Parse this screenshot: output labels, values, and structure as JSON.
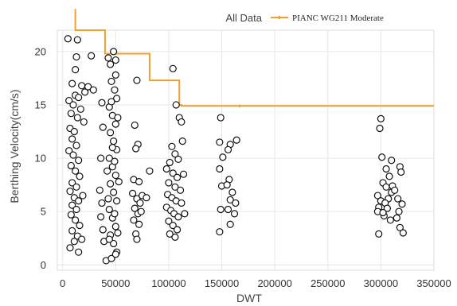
{
  "chart_data": {
    "type": "scatter",
    "xlabel": "DWT",
    "ylabel": "Berthing Velocity(cm/s)",
    "xlim": [
      -5000,
      350000
    ],
    "ylim": [
      -0.5,
      22
    ],
    "xticks": [
      0,
      50000,
      100000,
      150000,
      200000,
      250000,
      300000,
      350000
    ],
    "xtick_labels": [
      "0",
      "50000",
      "100000",
      "150000",
      "200000",
      "250000",
      "300000",
      "350000"
    ],
    "yticks": [
      0,
      5,
      10,
      15,
      20
    ],
    "ytick_labels": [
      "0",
      "5",
      "10",
      "15",
      "20"
    ],
    "grid": true,
    "legend": {
      "title": "All Data",
      "placement": "top-right",
      "entries": [
        "PIANC WG211 Moderate"
      ]
    },
    "colors": {
      "line": "#f0a030",
      "marker_edge": "#111111",
      "marker_face": "#ffffff",
      "grid": "#e6e6e6"
    },
    "series": [
      {
        "name": "PIANC WG211 Moderate",
        "type": "step-line",
        "points": [
          [
            12000,
            24
          ],
          [
            12000,
            22
          ],
          [
            40000,
            22
          ],
          [
            40000,
            19.8
          ],
          [
            82000,
            19.8
          ],
          [
            82000,
            17.3
          ],
          [
            110000,
            17.3
          ],
          [
            110000,
            15.0
          ],
          [
            112000,
            15.0
          ],
          [
            112000,
            14.9
          ],
          [
            350000,
            14.9
          ]
        ]
      },
      {
        "name": "All Data",
        "type": "scatter",
        "points": [
          [
            5000,
            21.2
          ],
          [
            14000,
            21.1
          ],
          [
            13000,
            19.5
          ],
          [
            27000,
            19.6
          ],
          [
            12000,
            18.3
          ],
          [
            9000,
            17.0
          ],
          [
            18000,
            16.8
          ],
          [
            21000,
            16.2
          ],
          [
            24000,
            16.7
          ],
          [
            29000,
            16.4
          ],
          [
            12000,
            15.9
          ],
          [
            15000,
            15.7
          ],
          [
            6000,
            15.4
          ],
          [
            10000,
            15.0
          ],
          [
            17000,
            14.6
          ],
          [
            8000,
            14.2
          ],
          [
            14000,
            13.8
          ],
          [
            20000,
            13.4
          ],
          [
            7000,
            12.8
          ],
          [
            11000,
            12.5
          ],
          [
            9000,
            11.8
          ],
          [
            13000,
            11.2
          ],
          [
            6000,
            10.7
          ],
          [
            10000,
            10.3
          ],
          [
            15000,
            9.8
          ],
          [
            8000,
            9.3
          ],
          [
            12000,
            8.8
          ],
          [
            16000,
            8.3
          ],
          [
            9000,
            7.7
          ],
          [
            13000,
            7.3
          ],
          [
            7000,
            6.9
          ],
          [
            11000,
            6.3
          ],
          [
            15000,
            6.0
          ],
          [
            9000,
            5.6
          ],
          [
            13000,
            5.2
          ],
          [
            8000,
            4.7
          ],
          [
            12000,
            4.2
          ],
          [
            16000,
            3.7
          ],
          [
            9000,
            3.2
          ],
          [
            14000,
            2.7
          ],
          [
            11000,
            2.2
          ],
          [
            7000,
            1.6
          ],
          [
            15000,
            1.2
          ],
          [
            19000,
            6.5
          ],
          [
            18000,
            2.4
          ],
          [
            37000,
            15.2
          ],
          [
            38000,
            12.9
          ],
          [
            36000,
            10.0
          ],
          [
            35000,
            7.0
          ],
          [
            37000,
            5.8
          ],
          [
            36000,
            4.5
          ],
          [
            38000,
            3.3
          ],
          [
            39000,
            2.2
          ],
          [
            41000,
            0.4
          ],
          [
            43000,
            19.4
          ],
          [
            45000,
            18.8
          ],
          [
            48000,
            20.0
          ],
          [
            50000,
            19.2
          ],
          [
            46000,
            17.2
          ],
          [
            49000,
            16.4
          ],
          [
            51000,
            15.6
          ],
          [
            44000,
            14.8
          ],
          [
            47000,
            14.0
          ],
          [
            50000,
            13.2
          ],
          [
            45000,
            12.4
          ],
          [
            48000,
            11.6
          ],
          [
            51000,
            10.8
          ],
          [
            44000,
            10.0
          ],
          [
            47000,
            9.2
          ],
          [
            50000,
            8.4
          ],
          [
            45000,
            7.6
          ],
          [
            48000,
            6.8
          ],
          [
            51000,
            6.0
          ],
          [
            44000,
            5.2
          ],
          [
            47000,
            4.4
          ],
          [
            50000,
            3.6
          ],
          [
            45000,
            2.8
          ],
          [
            48000,
            2.0
          ],
          [
            51000,
            1.2
          ],
          [
            46000,
            0.6
          ],
          [
            42000,
            8.8
          ],
          [
            43000,
            6.2
          ],
          [
            49000,
            4.8
          ],
          [
            52000,
            3.0
          ],
          [
            50000,
            17.8
          ],
          [
            47000,
            11.0
          ],
          [
            49000,
            9.7
          ],
          [
            53000,
            7.8
          ],
          [
            46000,
            15.3
          ],
          [
            52000,
            13.8
          ],
          [
            44000,
            2.4
          ],
          [
            50000,
            1.0
          ],
          [
            68000,
            13.1
          ],
          [
            71000,
            11.3
          ],
          [
            69000,
            10.9
          ],
          [
            67000,
            8.0
          ],
          [
            72000,
            7.8
          ],
          [
            66000,
            6.7
          ],
          [
            70000,
            6.2
          ],
          [
            73000,
            5.8
          ],
          [
            68000,
            5.3
          ],
          [
            71000,
            4.8
          ],
          [
            67000,
            4.2
          ],
          [
            72000,
            3.8
          ],
          [
            69000,
            2.9
          ],
          [
            70000,
            2.4
          ],
          [
            75000,
            6.5
          ],
          [
            74000,
            5.0
          ],
          [
            82000,
            8.8
          ],
          [
            79000,
            6.3
          ],
          [
            70000,
            17.3
          ],
          [
            103000,
            11.1
          ],
          [
            106000,
            10.4
          ],
          [
            101000,
            9.6
          ],
          [
            109000,
            9.9
          ],
          [
            98000,
            9.0
          ],
          [
            104000,
            8.6
          ],
          [
            108000,
            8.2
          ],
          [
            100000,
            7.7
          ],
          [
            106000,
            7.3
          ],
          [
            111000,
            7.0
          ],
          [
            99000,
            6.6
          ],
          [
            103000,
            6.3
          ],
          [
            107000,
            6.0
          ],
          [
            112000,
            5.8
          ],
          [
            98000,
            5.4
          ],
          [
            102000,
            5.1
          ],
          [
            105000,
            4.8
          ],
          [
            109000,
            4.5
          ],
          [
            100000,
            4.1
          ],
          [
            104000,
            3.7
          ],
          [
            108000,
            3.3
          ],
          [
            101000,
            2.9
          ],
          [
            106000,
            2.6
          ],
          [
            113000,
            11.6
          ],
          [
            110000,
            13.8
          ],
          [
            112000,
            13.4
          ],
          [
            107000,
            15.0
          ],
          [
            104000,
            18.4
          ],
          [
            115000,
            4.8
          ],
          [
            114000,
            8.5
          ],
          [
            149000,
            13.8
          ],
          [
            148000,
            11.5
          ],
          [
            151000,
            10.1
          ],
          [
            148000,
            9.0
          ],
          [
            150000,
            7.4
          ],
          [
            149000,
            5.2
          ],
          [
            148000,
            3.1
          ],
          [
            158000,
            11.3
          ],
          [
            156000,
            10.8
          ],
          [
            164000,
            11.7
          ],
          [
            157000,
            8.0
          ],
          [
            160000,
            6.8
          ],
          [
            158000,
            6.1
          ],
          [
            163000,
            5.8
          ],
          [
            156000,
            5.2
          ],
          [
            162000,
            4.8
          ],
          [
            158000,
            3.8
          ],
          [
            155000,
            7.5
          ],
          [
            300000,
            13.7
          ],
          [
            299000,
            12.8
          ],
          [
            301000,
            10.1
          ],
          [
            310000,
            9.8
          ],
          [
            305000,
            9.0
          ],
          [
            297000,
            6.5
          ],
          [
            300000,
            6.0
          ],
          [
            298000,
            5.4
          ],
          [
            297000,
            5.0
          ],
          [
            298000,
            2.9
          ],
          [
            302000,
            7.7
          ],
          [
            305000,
            7.3
          ],
          [
            308000,
            8.3
          ],
          [
            310000,
            6.8
          ],
          [
            307000,
            6.2
          ],
          [
            304000,
            5.8
          ],
          [
            306000,
            5.3
          ],
          [
            303000,
            4.6
          ],
          [
            309000,
            4.2
          ],
          [
            311000,
            7.4
          ],
          [
            318000,
            9.2
          ],
          [
            319000,
            8.7
          ],
          [
            316000,
            6.2
          ],
          [
            320000,
            5.7
          ],
          [
            317000,
            5.0
          ],
          [
            315000,
            4.4
          ],
          [
            318000,
            3.5
          ],
          [
            321000,
            3.0
          ],
          [
            302000,
            4.9
          ],
          [
            313000,
            7.0
          ]
        ]
      }
    ]
  }
}
